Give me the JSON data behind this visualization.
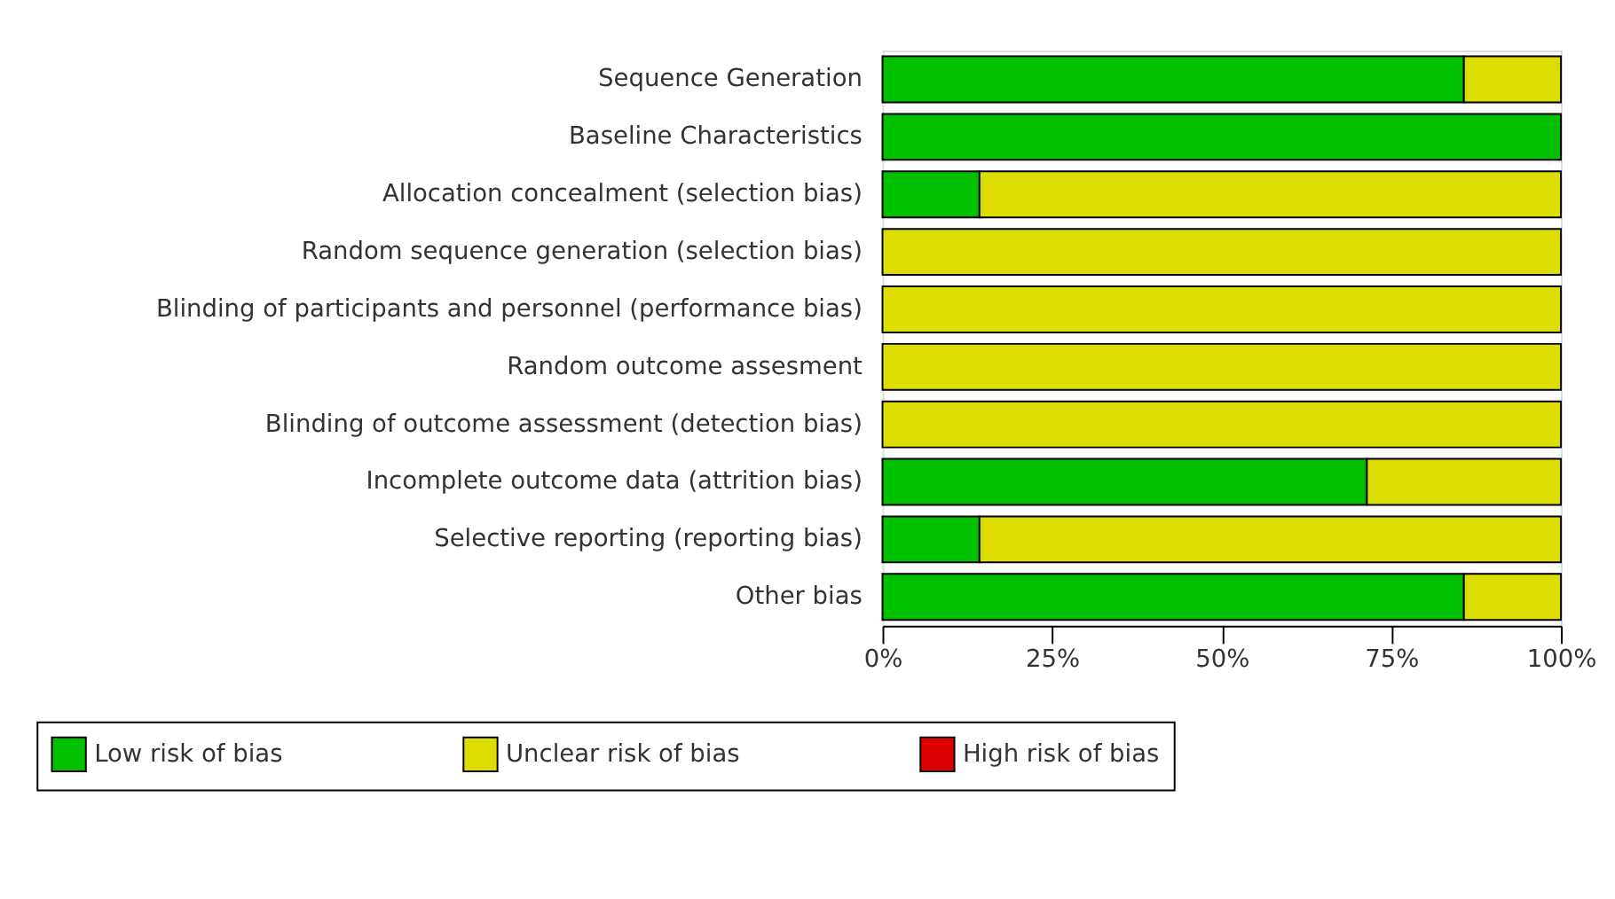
{
  "chart_data": {
    "type": "bar",
    "orientation": "horizontal",
    "stacked": true,
    "categories": [
      "Sequence Generation",
      "Baseline Characteristics",
      "Allocation concealment (selection bias)",
      "Random sequence generation (selection bias)",
      "Blinding of participants and personnel (performance bias)",
      "Random outcome assesment",
      "Blinding of outcome assessment (detection bias)",
      "Incomplete outcome data (attrition bias)",
      "Selective reporting (reporting bias)",
      "Other bias"
    ],
    "series": [
      {
        "name": "Low risk of bias",
        "color": "#00c000",
        "values": [
          85.7,
          100,
          14.3,
          0,
          0,
          0,
          0,
          71.4,
          14.3,
          85.7
        ]
      },
      {
        "name": "Unclear risk of bias",
        "color": "#dddd00",
        "values": [
          14.3,
          0,
          85.7,
          100,
          100,
          100,
          100,
          28.6,
          85.7,
          14.3
        ]
      },
      {
        "name": "High risk of bias",
        "color": "#dd0000",
        "values": [
          0,
          0,
          0,
          0,
          0,
          0,
          0,
          0,
          0,
          0
        ]
      }
    ],
    "xlim": [
      0,
      100
    ],
    "xticks": [
      {
        "value": 0,
        "label": "0%"
      },
      {
        "value": 25,
        "label": "25%"
      },
      {
        "value": 50,
        "label": "50%"
      },
      {
        "value": 75,
        "label": "75%"
      },
      {
        "value": 100,
        "label": "100%"
      }
    ],
    "grid": false,
    "legend": "bottom"
  }
}
